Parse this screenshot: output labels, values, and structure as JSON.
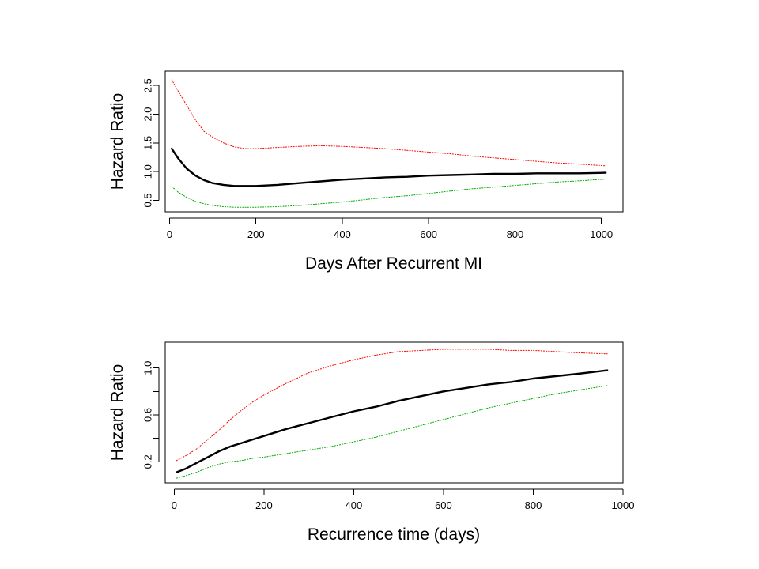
{
  "chart_data": [
    {
      "type": "line",
      "title": "",
      "xlabel": "Days After Recurrent MI",
      "ylabel": "Hazard Ratio",
      "xlim": [
        -10,
        1050
      ],
      "ylim": [
        0.3,
        2.75
      ],
      "xticks": [
        "0",
        "200",
        "400",
        "600",
        "800",
        "1000"
      ],
      "yticks": [
        "0.5",
        "1.0",
        "1.5",
        "2.0",
        "2.5"
      ],
      "grid": false,
      "legend": "none",
      "series": [
        {
          "color": "#ff0000",
          "style": "dotted",
          "width": 1,
          "x": [
            5,
            20,
            40,
            60,
            80,
            100,
            125,
            150,
            175,
            200,
            250,
            300,
            350,
            400,
            450,
            500,
            550,
            600,
            650,
            700,
            750,
            800,
            850,
            900,
            950,
            1010
          ],
          "y": [
            2.6,
            2.4,
            2.15,
            1.9,
            1.7,
            1.6,
            1.5,
            1.43,
            1.4,
            1.4,
            1.42,
            1.44,
            1.45,
            1.44,
            1.42,
            1.4,
            1.37,
            1.34,
            1.31,
            1.27,
            1.24,
            1.21,
            1.18,
            1.15,
            1.13,
            1.1
          ]
        },
        {
          "color": "#000000",
          "style": "solid",
          "width": 2.4,
          "x": [
            5,
            20,
            40,
            60,
            80,
            100,
            125,
            150,
            175,
            200,
            250,
            300,
            350,
            400,
            450,
            500,
            550,
            600,
            650,
            700,
            750,
            800,
            850,
            900,
            950,
            1010
          ],
          "y": [
            1.4,
            1.23,
            1.05,
            0.93,
            0.85,
            0.8,
            0.77,
            0.75,
            0.75,
            0.75,
            0.77,
            0.8,
            0.83,
            0.86,
            0.88,
            0.9,
            0.91,
            0.93,
            0.94,
            0.95,
            0.96,
            0.96,
            0.97,
            0.97,
            0.97,
            0.98
          ]
        },
        {
          "color": "#00aa00",
          "style": "dotted",
          "width": 1,
          "x": [
            5,
            20,
            40,
            60,
            80,
            100,
            125,
            150,
            175,
            200,
            250,
            300,
            350,
            400,
            450,
            500,
            550,
            600,
            650,
            700,
            750,
            800,
            850,
            900,
            950,
            1010
          ],
          "y": [
            0.74,
            0.64,
            0.55,
            0.48,
            0.44,
            0.41,
            0.39,
            0.38,
            0.38,
            0.38,
            0.39,
            0.41,
            0.44,
            0.47,
            0.51,
            0.55,
            0.58,
            0.62,
            0.66,
            0.7,
            0.73,
            0.76,
            0.79,
            0.82,
            0.84,
            0.87
          ]
        }
      ]
    },
    {
      "type": "line",
      "title": "",
      "xlabel": "Recurrence time (days)",
      "ylabel": "Hazard Ratio",
      "xlim": [
        -20,
        1000
      ],
      "ylim": [
        0.02,
        1.22
      ],
      "xticks": [
        "0",
        "200",
        "400",
        "600",
        "800",
        "1000"
      ],
      "yticks": [
        "0.2",
        "",
        "0.6",
        "",
        "1.0"
      ],
      "ytick_values": [
        0.2,
        0.4,
        0.6,
        0.8,
        1.0
      ],
      "grid": false,
      "legend": "none",
      "series": [
        {
          "color": "#ff0000",
          "style": "dotted",
          "width": 1,
          "x": [
            5,
            25,
            50,
            75,
            100,
            125,
            150,
            175,
            200,
            250,
            300,
            350,
            400,
            450,
            500,
            550,
            600,
            650,
            700,
            750,
            800,
            850,
            900,
            965
          ],
          "y": [
            0.21,
            0.25,
            0.31,
            0.39,
            0.47,
            0.56,
            0.64,
            0.71,
            0.77,
            0.87,
            0.96,
            1.02,
            1.07,
            1.11,
            1.14,
            1.15,
            1.16,
            1.16,
            1.16,
            1.15,
            1.15,
            1.14,
            1.13,
            1.12
          ]
        },
        {
          "color": "#000000",
          "style": "solid",
          "width": 2.4,
          "x": [
            5,
            25,
            50,
            75,
            100,
            125,
            150,
            175,
            200,
            250,
            300,
            350,
            400,
            450,
            500,
            550,
            600,
            650,
            700,
            750,
            800,
            850,
            900,
            965
          ],
          "y": [
            0.11,
            0.14,
            0.19,
            0.24,
            0.29,
            0.33,
            0.36,
            0.39,
            0.42,
            0.48,
            0.53,
            0.58,
            0.63,
            0.67,
            0.72,
            0.76,
            0.8,
            0.83,
            0.86,
            0.88,
            0.91,
            0.93,
            0.95,
            0.98
          ]
        },
        {
          "color": "#00aa00",
          "style": "dotted",
          "width": 1,
          "x": [
            5,
            25,
            50,
            75,
            100,
            125,
            150,
            175,
            200,
            250,
            300,
            350,
            400,
            450,
            500,
            550,
            600,
            650,
            700,
            750,
            800,
            850,
            900,
            965
          ],
          "y": [
            0.06,
            0.08,
            0.11,
            0.15,
            0.18,
            0.2,
            0.21,
            0.23,
            0.24,
            0.27,
            0.3,
            0.33,
            0.37,
            0.41,
            0.46,
            0.51,
            0.56,
            0.61,
            0.66,
            0.7,
            0.74,
            0.78,
            0.81,
            0.85
          ]
        }
      ]
    }
  ]
}
